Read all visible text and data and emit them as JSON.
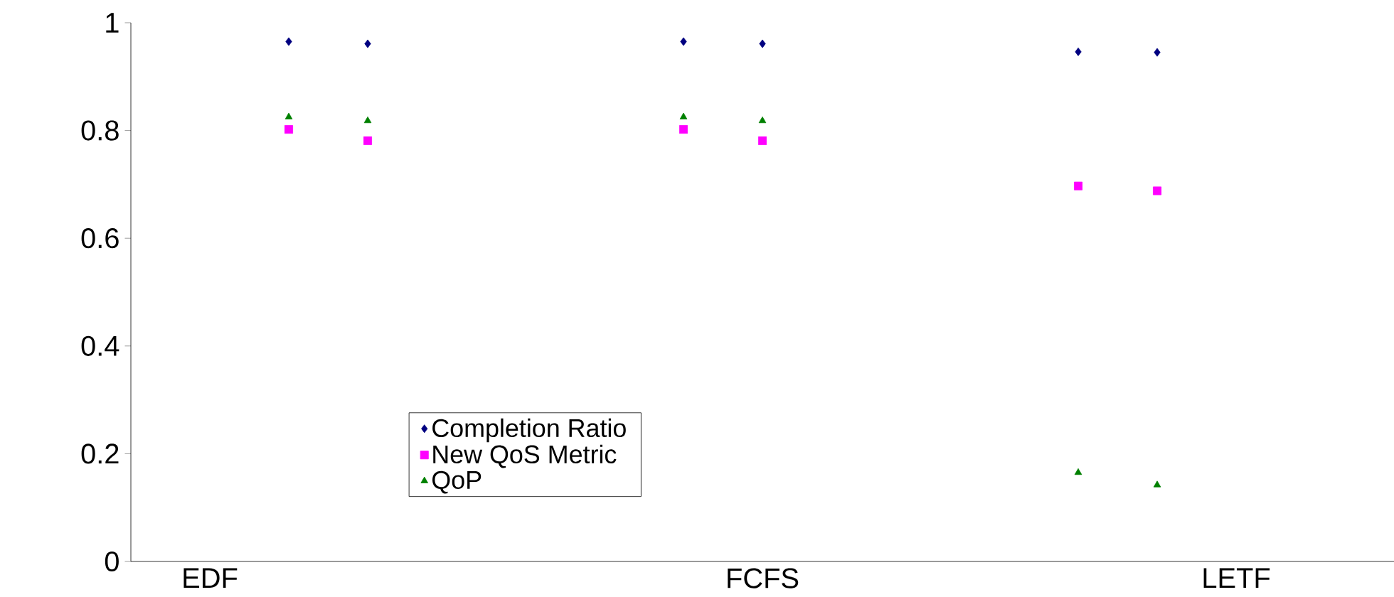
{
  "chart_data": {
    "type": "scatter",
    "categories": [
      null,
      "EDF",
      null,
      null,
      null,
      null,
      null,
      null,
      "FCFS",
      null,
      null,
      null,
      null,
      null,
      "LETF",
      null
    ],
    "ylim": [
      0,
      1
    ],
    "yticks": [
      0,
      0.2,
      0.4,
      0.6,
      0.8,
      1
    ],
    "grid": false,
    "legend": "bottom left",
    "series": [
      {
        "name": "Completion Ratio",
        "color": "#000080",
        "marker": "diamond",
        "values": [
          null,
          null,
          0.965,
          0.961,
          null,
          null,
          null,
          0.965,
          0.961,
          null,
          null,
          null,
          0.946,
          0.945,
          null,
          null
        ]
      },
      {
        "name": "New QoS Metric",
        "color": "#ff00ff",
        "marker": "square",
        "values": [
          null,
          null,
          0.802,
          0.781,
          null,
          null,
          null,
          0.802,
          0.781,
          null,
          null,
          null,
          0.697,
          0.688,
          null,
          null
        ]
      },
      {
        "name": "QoP",
        "color": "#008000",
        "marker": "triangle",
        "values": [
          null,
          null,
          0.825,
          0.818,
          null,
          null,
          null,
          0.825,
          0.818,
          null,
          null,
          null,
          0.165,
          0.142,
          null,
          null
        ]
      }
    ]
  }
}
